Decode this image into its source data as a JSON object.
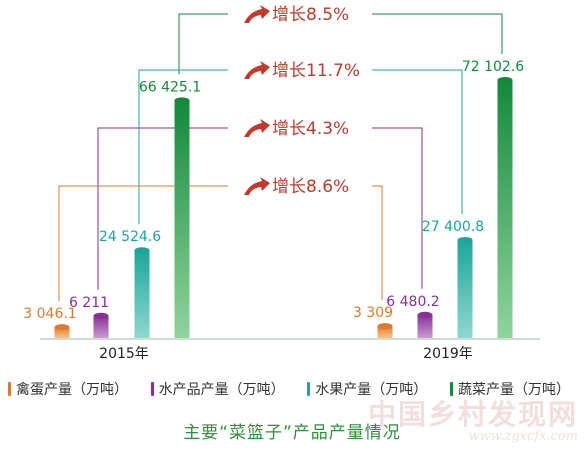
{
  "chart_data": {
    "type": "bar",
    "categories": [
      "2015年",
      "2019年"
    ],
    "series": [
      {
        "name": "禽蛋产量（万吨）",
        "color": "#e07a2a",
        "values": [
          3046.1,
          3309
        ],
        "labels": [
          "3 046.1",
          "3 309"
        ]
      },
      {
        "name": "水产品产量（万吨）",
        "color": "#8a2f98",
        "values": [
          6211,
          6480.2
        ],
        "labels": [
          "6 211",
          "6 480.2"
        ]
      },
      {
        "name": "水果产量（万吨）",
        "color": "#1aa79a",
        "values": [
          24524.6,
          27400.8
        ],
        "labels": [
          "24 524.6",
          "27 400.8"
        ]
      },
      {
        "name": "蔬菜产量（万吨）",
        "color": "#138a3a",
        "values": [
          66425.1,
          72102.6
        ],
        "labels": [
          "66 425.1",
          "72 102.6"
        ]
      }
    ],
    "growth": [
      {
        "series": "蔬菜产量（万吨）",
        "label": "增长8.5%"
      },
      {
        "series": "水果产量（万吨）",
        "label": "增长11.7%"
      },
      {
        "series": "水产品产量（万吨）",
        "label": "增长4.3%"
      },
      {
        "series": "禽蛋产量（万吨）",
        "label": "增长8.6%"
      }
    ],
    "title": "主要“菜篮子”产品产量情况",
    "xlabel": "",
    "ylabel": "",
    "grid": false,
    "legend": "bottom"
  },
  "watermark": {
    "main": "中国乡村发现网",
    "sub": "www.zgxcfx.com"
  }
}
